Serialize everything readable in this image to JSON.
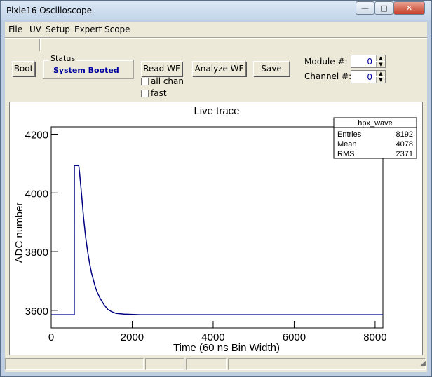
{
  "window": {
    "title": "Pixie16 Oscilloscope",
    "controls": {
      "minimize": "—",
      "maximize": "□",
      "close": "✕"
    }
  },
  "menu": {
    "items": [
      "File",
      "UV_Setup",
      "Expert",
      "Scope"
    ]
  },
  "toolbar": {
    "boot_label": "Boot",
    "status_label": "Status",
    "status_text": "System Booted",
    "read_wf_label": "Read WF",
    "analyze_wf_label": "Analyze WF",
    "save_label": "Save",
    "all_chan_label": "all chan",
    "fast_label": "fast",
    "module_label": "Module #:",
    "module_value": "0",
    "channel_label": "Channel #:",
    "channel_value": "0"
  },
  "chart_data": {
    "type": "line",
    "title": "Live trace",
    "xlabel": "Time (60 ns Bin Width)",
    "ylabel": "ADC number",
    "xlim": [
      0,
      8192
    ],
    "ylim": [
      3540,
      4225
    ],
    "xticks": [
      0,
      2000,
      4000,
      6000,
      8000
    ],
    "yticks": [
      3600,
      3800,
      4000,
      4200
    ],
    "series": [
      {
        "color": "#000080",
        "x": [
          0,
          570,
          571,
          580,
          680,
          700,
          750,
          800,
          850,
          900,
          950,
          1000,
          1050,
          1100,
          1150,
          1200,
          1300,
          1400,
          1500,
          1600,
          1800,
          2200,
          3000,
          4000,
          5000,
          6000,
          7000,
          8192
        ],
        "y": [
          3585,
          3585,
          4093,
          4093,
          4093,
          4070,
          3995,
          3915,
          3850,
          3800,
          3758,
          3725,
          3700,
          3675,
          3658,
          3643,
          3620,
          3603,
          3595,
          3590,
          3587,
          3585,
          3585,
          3585,
          3585,
          3585,
          3585,
          3585
        ]
      }
    ],
    "stats": {
      "name": "hpx_wave",
      "rows": [
        {
          "label": "Entries",
          "value": "8192"
        },
        {
          "label": "Mean",
          "value": "4078"
        },
        {
          "label": "RMS",
          "value": "2371"
        }
      ]
    }
  }
}
